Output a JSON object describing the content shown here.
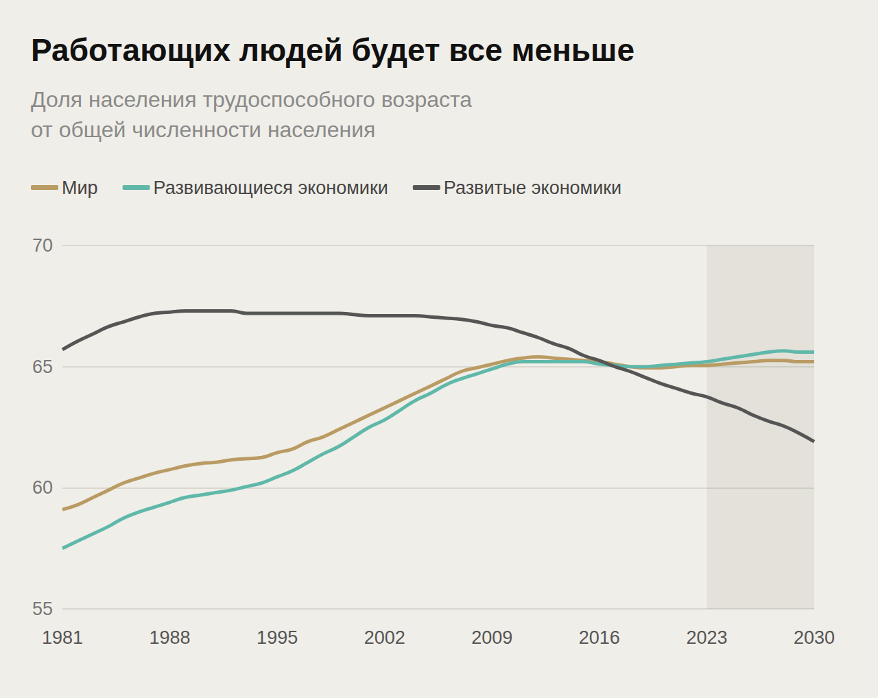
{
  "chart_data": {
    "type": "line",
    "title": "Работающих людей будет все меньше",
    "subtitle": "Доля населения трудоспособного возраста\nот общей численности населения",
    "x": [
      1981,
      1982,
      1983,
      1984,
      1985,
      1986,
      1987,
      1988,
      1989,
      1990,
      1991,
      1992,
      1993,
      1994,
      1995,
      1996,
      1997,
      1998,
      1999,
      2000,
      2001,
      2002,
      2003,
      2004,
      2005,
      2006,
      2007,
      2008,
      2009,
      2010,
      2011,
      2012,
      2013,
      2014,
      2015,
      2016,
      2017,
      2018,
      2019,
      2020,
      2021,
      2022,
      2023,
      2024,
      2025,
      2026,
      2027,
      2028,
      2029,
      2030
    ],
    "series": [
      {
        "name": "Мир",
        "color": "#b99b63",
        "values": [
          59.1,
          59.3,
          59.6,
          59.9,
          60.2,
          60.4,
          60.6,
          60.75,
          60.9,
          61.0,
          61.05,
          61.15,
          61.2,
          61.25,
          61.45,
          61.6,
          61.9,
          62.1,
          62.4,
          62.7,
          63.0,
          63.3,
          63.6,
          63.9,
          64.2,
          64.5,
          64.8,
          64.95,
          65.1,
          65.25,
          65.35,
          65.4,
          65.35,
          65.3,
          65.25,
          65.2,
          65.1,
          65.0,
          64.95,
          64.95,
          65.0,
          65.05,
          65.05,
          65.1,
          65.15,
          65.2,
          65.25,
          65.25,
          65.2,
          65.2
        ]
      },
      {
        "name": "Развивающиеся экономики",
        "color": "#5fb8a9",
        "values": [
          57.5,
          57.8,
          58.1,
          58.4,
          58.75,
          59.0,
          59.2,
          59.4,
          59.6,
          59.7,
          59.8,
          59.9,
          60.05,
          60.2,
          60.45,
          60.7,
          61.05,
          61.4,
          61.7,
          62.1,
          62.5,
          62.8,
          63.2,
          63.6,
          63.9,
          64.25,
          64.5,
          64.7,
          64.9,
          65.1,
          65.2,
          65.2,
          65.2,
          65.2,
          65.2,
          65.1,
          65.05,
          65.0,
          65.0,
          65.05,
          65.1,
          65.15,
          65.2,
          65.3,
          65.4,
          65.5,
          65.6,
          65.65,
          65.6,
          65.6
        ]
      },
      {
        "name": "Развитые экономики",
        "color": "#555555",
        "values": [
          65.7,
          66.05,
          66.35,
          66.65,
          66.85,
          67.05,
          67.2,
          67.25,
          67.3,
          67.3,
          67.3,
          67.3,
          67.2,
          67.2,
          67.2,
          67.2,
          67.2,
          67.2,
          67.2,
          67.15,
          67.1,
          67.1,
          67.1,
          67.1,
          67.05,
          67.0,
          66.95,
          66.85,
          66.7,
          66.6,
          66.4,
          66.2,
          65.95,
          65.75,
          65.45,
          65.25,
          65.0,
          64.8,
          64.55,
          64.3,
          64.1,
          63.9,
          63.75,
          63.5,
          63.3,
          63.0,
          62.75,
          62.55,
          62.25,
          61.9
        ]
      }
    ],
    "xlim": [
      1981,
      2030
    ],
    "xticks": [
      1981,
      1988,
      1995,
      2002,
      2009,
      2016,
      2023,
      2030
    ],
    "ylim": [
      55,
      70
    ],
    "yticks": [
      55,
      60,
      65,
      70
    ],
    "shaded_range": [
      2023,
      2030
    ],
    "grid": true,
    "legend": "top-left"
  }
}
